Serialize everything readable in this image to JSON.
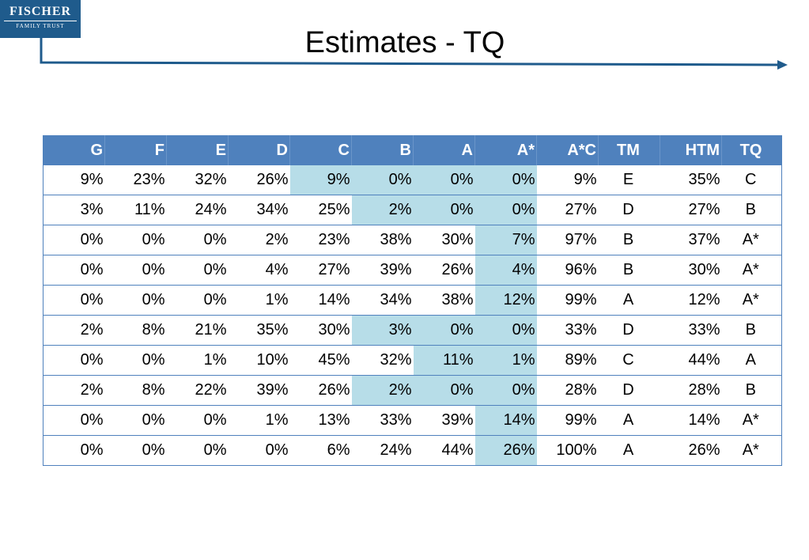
{
  "logo": {
    "line1": "FISCHER",
    "line2": "FAMILY TRUST"
  },
  "title": "Estimates - TQ",
  "colors": {
    "header_bg": "#4f81bd",
    "header_text": "#ffffff",
    "highlight": "#b7dde8",
    "logo_bg": "#1f5b8c",
    "arrow": "#1f5b8c"
  },
  "table": {
    "headers": [
      "G",
      "F",
      "E",
      "D",
      "C",
      "B",
      "A",
      "A*",
      "A*C",
      "TM",
      "HTM",
      "TQ"
    ],
    "rows": [
      [
        "9%",
        "23%",
        "32%",
        "26%",
        "9%",
        "0%",
        "0%",
        "0%",
        "9%",
        "E",
        "35%",
        "C"
      ],
      [
        "3%",
        "11%",
        "24%",
        "34%",
        "25%",
        "2%",
        "0%",
        "0%",
        "27%",
        "D",
        "27%",
        "B"
      ],
      [
        "0%",
        "0%",
        "0%",
        "2%",
        "23%",
        "38%",
        "30%",
        "7%",
        "97%",
        "B",
        "37%",
        "A*"
      ],
      [
        "0%",
        "0%",
        "0%",
        "4%",
        "27%",
        "39%",
        "26%",
        "4%",
        "96%",
        "B",
        "30%",
        "A*"
      ],
      [
        "0%",
        "0%",
        "0%",
        "1%",
        "14%",
        "34%",
        "38%",
        "12%",
        "99%",
        "A",
        "12%",
        "A*"
      ],
      [
        "2%",
        "8%",
        "21%",
        "35%",
        "30%",
        "3%",
        "0%",
        "0%",
        "33%",
        "D",
        "33%",
        "B"
      ],
      [
        "0%",
        "0%",
        "1%",
        "10%",
        "45%",
        "32%",
        "11%",
        "1%",
        "89%",
        "C",
        "44%",
        "A"
      ],
      [
        "2%",
        "8%",
        "22%",
        "39%",
        "26%",
        "2%",
        "0%",
        "0%",
        "28%",
        "D",
        "28%",
        "B"
      ],
      [
        "0%",
        "0%",
        "0%",
        "1%",
        "13%",
        "33%",
        "39%",
        "14%",
        "99%",
        "A",
        "14%",
        "A*"
      ],
      [
        "0%",
        "0%",
        "0%",
        "0%",
        "6%",
        "24%",
        "44%",
        "26%",
        "100%",
        "A",
        "26%",
        "A*"
      ]
    ],
    "highlighted_cells": [
      [
        4,
        5,
        6,
        7
      ],
      [
        5,
        6,
        7
      ],
      [
        7
      ],
      [
        7
      ],
      [
        7
      ],
      [
        5,
        6,
        7
      ],
      [
        6,
        7
      ],
      [
        5,
        6,
        7
      ],
      [
        7
      ],
      [
        7
      ]
    ]
  }
}
